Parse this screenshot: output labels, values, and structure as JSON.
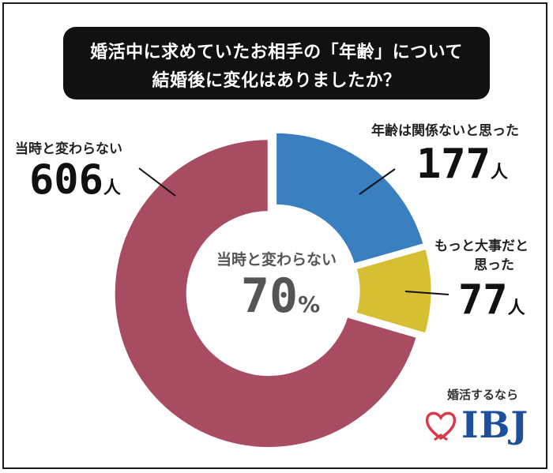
{
  "title": {
    "line1": "婚活中に求めていたお相手の「年齢」について",
    "line2": "結婚後に変化はありましたか？"
  },
  "center": {
    "label": "当時と変わらない",
    "value": "70",
    "unit": "%"
  },
  "brand": {
    "tagline": "婚活するなら",
    "logo_text": "IBJ",
    "heart_color": "#d93a4a",
    "text_color": "#1c4f9c"
  },
  "chart_data": {
    "type": "pie",
    "donut": true,
    "unit": "人",
    "slices": [
      {
        "label": "年齢は関係ないと思った",
        "value": 177,
        "color": "#3a7fbf"
      },
      {
        "label": "もっと大事だと思った",
        "value": 77,
        "color": "#d6bf33"
      },
      {
        "label": "当時と変わらない",
        "value": 606,
        "color": "#a84c62"
      }
    ],
    "labels": {
      "s0": {
        "line1": "年齢は関係ないと思った",
        "count": "177",
        "unit": "人"
      },
      "s1": {
        "line1": "もっと大事だと",
        "line2": "思った",
        "count": "77",
        "unit": "人"
      },
      "s2": {
        "line1": "当時と変わらない",
        "count": "606",
        "unit": "人"
      }
    }
  }
}
